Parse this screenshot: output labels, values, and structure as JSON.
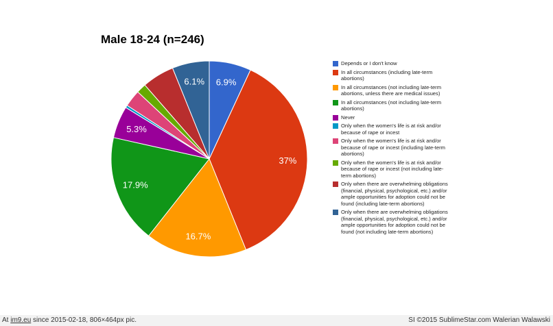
{
  "chart_data": {
    "type": "pie",
    "title": "Male 18-24 (n=246)",
    "slices": [
      {
        "label": "Depends or I don't know",
        "value": 6.9,
        "data_label": "6.9%",
        "color": "#3366cc"
      },
      {
        "label": "In all circumstances (including late-term abortions)",
        "value": 37.0,
        "data_label": "37%",
        "color": "#dc3912"
      },
      {
        "label": "In all circumstances (not including late-term abortions, unless there are medical issues)",
        "value": 16.7,
        "data_label": "16.7%",
        "color": "#ff9900"
      },
      {
        "label": "In all circumstances (not including late-term abortions)",
        "value": 17.9,
        "data_label": "17.9%",
        "color": "#109618"
      },
      {
        "label": "Never",
        "value": 5.3,
        "data_label": "5.3%",
        "color": "#990099"
      },
      {
        "label": "Only when the women's life is at risk and/or because of rape or incest",
        "value": 0.4,
        "data_label": "",
        "color": "#0099c6"
      },
      {
        "label": "Only when the women's life is at risk and/or because of rape or incest (including late-term abortions)",
        "value": 2.8,
        "data_label": "",
        "color": "#dd4477"
      },
      {
        "label": "Only when the women's life is at risk and/or because of rape or incest (not including late-term abortions)",
        "value": 1.6,
        "data_label": "",
        "color": "#66aa00"
      },
      {
        "label": "Only when there are overwhelming obligations (financial, physical, psychological, etc.) and/or ample opportunities for adoption could not be found (including late-term abortions)",
        "value": 5.3,
        "data_label": "",
        "color": "#b82e2e"
      },
      {
        "label": "Only when there are overwhelming obligations (financial, physical, psychological, etc.) and/or ample opportunities for adoption could not be found (not including late-term abortions)",
        "value": 6.1,
        "data_label": "6.1%",
        "color": "#316395"
      }
    ],
    "legend_position": "right"
  },
  "footer": {
    "left_prefix": "At ",
    "left_link": "im9.eu",
    "left_suffix": " since 2015-02-18, 806×464px pic.",
    "right": "SI ©2015 SublimeStar.com Walerian Walawski"
  }
}
